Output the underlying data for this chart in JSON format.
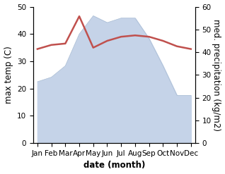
{
  "months": [
    "Jan",
    "Feb",
    "Mar",
    "Apr",
    "May",
    "Jun",
    "Jul",
    "Aug",
    "Sep",
    "Oct",
    "Nov",
    "Dec"
  ],
  "temperature": [
    34.5,
    36.0,
    36.5,
    46.5,
    35.0,
    37.5,
    39.0,
    39.5,
    39.0,
    37.5,
    35.5,
    34.5
  ],
  "precipitation": [
    27,
    29,
    34,
    48,
    56,
    53,
    55,
    55,
    46,
    34,
    21,
    21
  ],
  "temp_color": "#c0504d",
  "precip_fill_color": "#c5d3e8",
  "precip_line_color": "#aabdd4",
  "left_ylim": [
    0,
    50
  ],
  "right_ylim": [
    0,
    60
  ],
  "left_yticks": [
    0,
    10,
    20,
    30,
    40,
    50
  ],
  "right_yticks": [
    0,
    10,
    20,
    30,
    40,
    50,
    60
  ],
  "xlabel": "date (month)",
  "ylabel_left": "max temp (C)",
  "ylabel_right": "med. precipitation (kg/m2)",
  "label_fontsize": 8.5,
  "tick_fontsize": 7.5,
  "linewidth_temp": 1.8
}
